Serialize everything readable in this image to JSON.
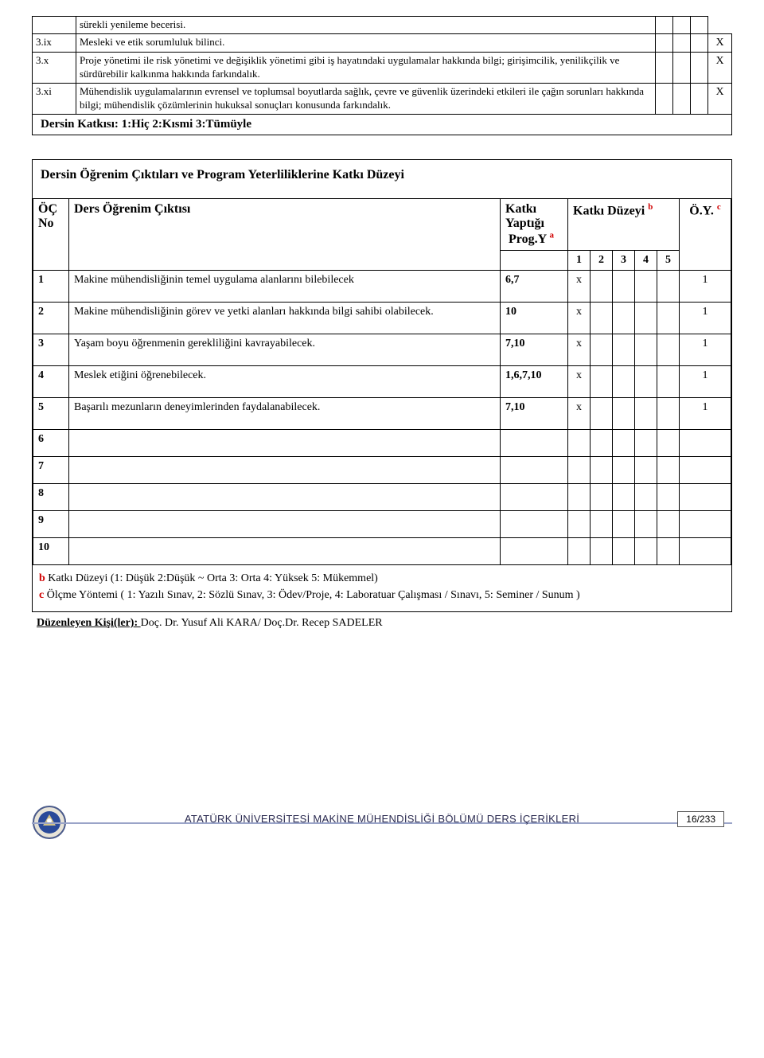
{
  "top_table": {
    "rows": [
      {
        "id": "",
        "text": "sürekli yenileme becerisi.",
        "mark_in_small": false,
        "mark_side": ""
      },
      {
        "id": "3.ix",
        "text": "Mesleki ve etik sorumluluk bilinci.",
        "mark_in_small": false,
        "mark_side": "X"
      },
      {
        "id": "3.x",
        "text": "Proje yönetimi ile risk yönetimi ve değişiklik yönetimi gibi iş hayatındaki uygulamalar hakkında bilgi; girişimcilik, yenilikçilik ve sürdürebilir kalkınma hakkında farkındalık.",
        "mark_in_small": false,
        "mark_side": "X"
      },
      {
        "id": "3.xi",
        "text": "Mühendislik uygulamalarının evrensel ve toplumsal boyutlarda sağlık, çevre ve güvenlik üzerindeki etkileri ile çağın sorunları hakkında bilgi; mühendislik çözümlerinin hukuksal sonuçları konusunda farkındalık.",
        "mark_in_small": false,
        "mark_side": "X"
      }
    ],
    "katkisi_label": "Dersin Katkısı: 1:Hiç 2:Kısmi  3:Tümüyle"
  },
  "main": {
    "title": "Dersin Öğrenim Çıktıları ve  Program Yeterliliklerine Katkı Düzeyi",
    "headers": {
      "oc_no": "ÖÇ No",
      "ders": "Ders Öğrenim Çıktısı",
      "katki": "Katkı Yaptığı",
      "progY": "Prog.Y",
      "progY_sup": "a",
      "duzeyi": "Katkı Düzeyi",
      "duzeyi_sup": "b",
      "levels": [
        "1",
        "2",
        "3",
        "4",
        "5"
      ],
      "oy": "Ö.Y.",
      "oy_sup": "c"
    },
    "rows": [
      {
        "no": "1",
        "text": "Makine mühendisliğinin temel uygulama alanlarını bilebilecek",
        "prog": "6,7",
        "lvl_col": 1,
        "oy": "1"
      },
      {
        "no": "2",
        "text": "Makine mühendisliğinin görev ve yetki alanları hakkında bilgi sahibi olabilecek.",
        "prog": "10",
        "lvl_col": 1,
        "oy": "1"
      },
      {
        "no": "3",
        "text": "Yaşam boyu öğrenmenin gerekliliğini kavrayabilecek.",
        "prog": "7,10",
        "lvl_col": 1,
        "oy": "1"
      },
      {
        "no": "4",
        "text": "Meslek etiğini öğrenebilecek.",
        "prog": "1,6,7,10",
        "lvl_col": 1,
        "oy": "1"
      },
      {
        "no": "5",
        "text": "Başarılı mezunların deneyimlerinden faydalanabilecek.",
        "prog": "7,10",
        "lvl_col": 1,
        "oy": "1"
      }
    ],
    "empty_rows": [
      "6",
      "7",
      "8",
      "9",
      "10"
    ],
    "footnote_b_label": "b",
    "footnote_b_text": " Katkı Düzeyi  (1: Düşük   2:Düşük ~ Orta       3: Orta        4: Yüksek   5: Mükemmel)",
    "footnote_c_label": "c",
    "footnote_c_text": " Ölçme Yöntemi ( 1: Yazılı Sınav,  2: Sözlü Sınav,  3: Ödev/Proje,  4: Laboratuar Çalışması / Sınavı,  5: Seminer / Sunum )",
    "duzenleyen_label": "Düzenleyen Kişi(ler): ",
    "duzenleyen_value": "Doç. Dr. Yusuf Ali KARA/ Doç.Dr. Recep SADELER"
  },
  "footer": {
    "text": "ATATÜRK ÜNİVERSİTESİ MAKİNE MÜHENDİSLİĞİ BÖLÜMÜ DERS İÇERİKLERİ",
    "page": "16/233"
  },
  "colors": {
    "sup_red": "#d00000",
    "footer_line": "#9aa4c8",
    "footer_text": "#2a2a50"
  }
}
